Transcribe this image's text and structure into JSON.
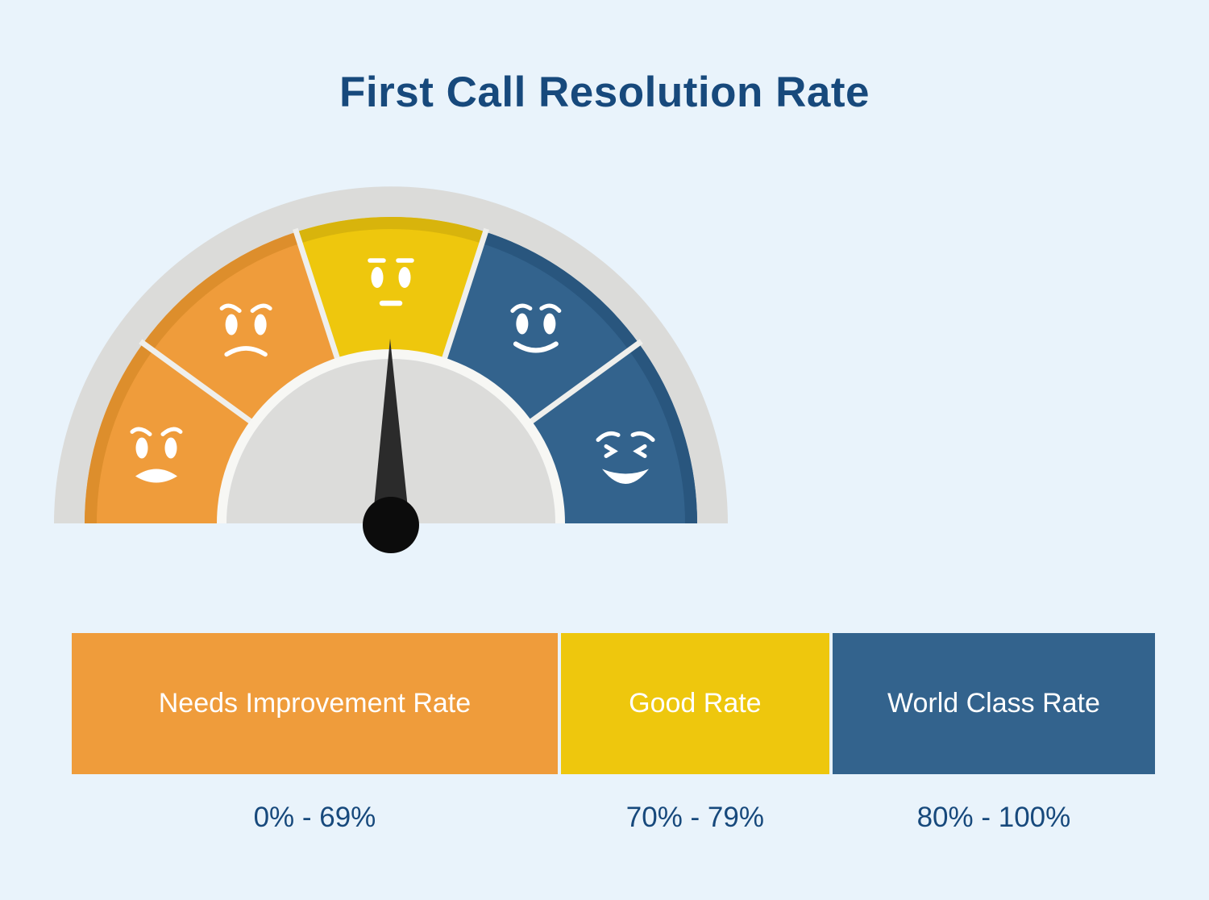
{
  "page": {
    "background": "#E9F3FB"
  },
  "chart_data": {
    "type": "gauge",
    "title": "First Call Resolution Rate",
    "gauge": {
      "segments": [
        {
          "color": "orange",
          "mood": "furious",
          "category": "Needs Improvement Rate"
        },
        {
          "color": "orange",
          "mood": "angry",
          "category": "Needs Improvement Rate"
        },
        {
          "color": "yellow",
          "mood": "neutral",
          "category": "Good Rate"
        },
        {
          "color": "blue",
          "mood": "happy",
          "category": "World Class Rate"
        },
        {
          "color": "blue",
          "mood": "joyful",
          "category": "World Class Rate"
        }
      ],
      "segment_count": 5,
      "needle_angle_deg": 90
    },
    "categories": [
      {
        "label": "Needs Improvement Rate",
        "range": "0% - 69%",
        "color": "orange",
        "width_pct": 44.9
      },
      {
        "label": "Good Rate",
        "range": "70% - 79%",
        "color": "yellow",
        "width_pct": 24.8
      },
      {
        "label": "World Class Rate",
        "range": "80% - 100%",
        "color": "blue",
        "width_pct": 29.8
      }
    ],
    "colors": {
      "orange": "#EF9C3B",
      "orange_dark": "#DD8E2C",
      "yellow": "#EEC70D",
      "yellow_dark": "#D8B40C",
      "blue": "#33638D",
      "blue_dark": "#29567E",
      "ring_gray": "#DBDBD9",
      "inner_gray": "#DCDCDA",
      "divider": "#EFEFEC",
      "gap_ring": "#F7F7F4",
      "needle": "#2B2B2B",
      "hub": "#0C0C0C",
      "face": "#FFFFFF",
      "text_navy": "#17497C",
      "label_white": "#FFFFFF",
      "background": "#E9F3FB"
    }
  }
}
